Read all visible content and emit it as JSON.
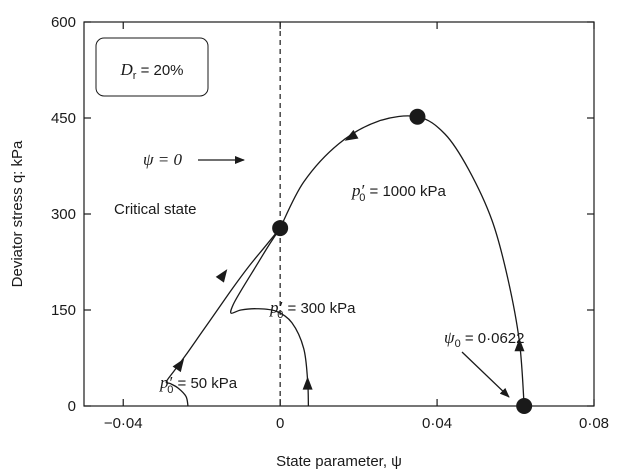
{
  "chart_data": {
    "type": "line",
    "xlabel": "State parameter, ψ",
    "ylabel": "Deviator stress q: kPa",
    "xlim": [
      -0.05,
      0.08
    ],
    "ylim": [
      0,
      600
    ],
    "xticks": [
      -0.04,
      0,
      0.04,
      0.08
    ],
    "xtick_labels": [
      "−0·04",
      "0",
      "0·04",
      "0·08"
    ],
    "yticks": [
      0,
      150,
      300,
      450,
      600
    ],
    "ytick_labels": [
      "0",
      "150",
      "300",
      "450",
      "600"
    ],
    "grid": false,
    "box_label": {
      "symbol": "D",
      "subscript": "r",
      "text": " = 20%"
    },
    "psi_zero_label": "ψ = 0",
    "critical_state_label": "Critical state",
    "psi0_label": {
      "symbol": "ψ",
      "subscript": "0",
      "text": " = 0·0622"
    },
    "series": [
      {
        "name": "p′0 = 1000 kPa",
        "label": {
          "base": "p′",
          "subscript": "0",
          "text": " = 1000 kPa"
        },
        "points": [
          [
            0.0622,
            0
          ],
          [
            0.061,
            100
          ],
          [
            0.058,
            200
          ],
          [
            0.054,
            290
          ],
          [
            0.048,
            370
          ],
          [
            0.042,
            425
          ],
          [
            0.035,
            452
          ],
          [
            0.025,
            445
          ],
          [
            0.015,
            410
          ],
          [
            0.006,
            350
          ],
          [
            0.0,
            278
          ]
        ]
      },
      {
        "name": "p′0 = 300 kPa",
        "label": {
          "base": "p′",
          "subscript": "0",
          "text": " = 300 kPa"
        },
        "points": [
          [
            0.0072,
            0
          ],
          [
            0.007,
            40
          ],
          [
            0.006,
            90
          ],
          [
            0.003,
            130
          ],
          [
            -0.001,
            148
          ],
          [
            -0.006,
            152
          ],
          [
            -0.01,
            150
          ],
          [
            -0.0125,
            145
          ],
          [
            -0.012,
            158
          ],
          [
            -0.01,
            180
          ],
          [
            -0.006,
            220
          ],
          [
            -0.003,
            250
          ],
          [
            0.0,
            278
          ]
        ]
      },
      {
        "name": "p′0 = 50 kPa",
        "label": {
          "base": "p′",
          "subscript": "0",
          "text": " = 50 kPa"
        },
        "points": [
          [
            -0.0235,
            0
          ],
          [
            -0.024,
            15
          ],
          [
            -0.026,
            28
          ],
          [
            -0.028,
            35
          ],
          [
            -0.029,
            38
          ],
          [
            -0.027,
            55
          ],
          [
            -0.024,
            80
          ],
          [
            -0.02,
            115
          ],
          [
            -0.016,
            150
          ],
          [
            -0.012,
            185
          ],
          [
            -0.008,
            218
          ],
          [
            -0.004,
            248
          ],
          [
            0.0,
            278
          ]
        ]
      }
    ],
    "markers": [
      {
        "name": "initial-state-1000",
        "x": 0.0622,
        "y": 0
      },
      {
        "name": "peak-1000",
        "x": 0.035,
        "y": 452
      },
      {
        "name": "critical-state",
        "x": 0.0,
        "y": 278
      }
    ],
    "arrows": [
      {
        "series": 0,
        "x": 0.061,
        "y": 95,
        "dir": "up"
      },
      {
        "series": 0,
        "x": 0.018,
        "y": 420,
        "dir": "down-left"
      },
      {
        "series": 1,
        "x": 0.007,
        "y": 35,
        "dir": "up"
      },
      {
        "series": 2,
        "x": -0.0255,
        "y": 65,
        "dir": "up-right"
      },
      {
        "series": 2,
        "x": -0.0145,
        "y": 205,
        "dir": "up-right"
      }
    ],
    "annotations": {
      "vertical_line_x": 0,
      "psi_zero_arrow_to": [
        0.0,
        480
      ],
      "psi0_arrow_to": [
        0.0622,
        0
      ]
    }
  }
}
